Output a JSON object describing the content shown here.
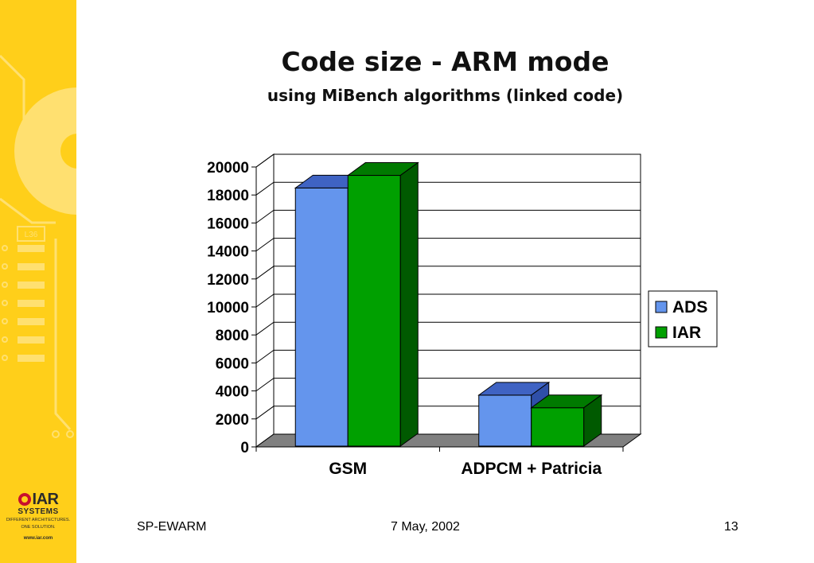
{
  "slide": {
    "title": "Code size - ARM mode",
    "subtitle": "using MiBench algorithms (linked code)"
  },
  "sidebar": {
    "board_label": "L36",
    "logo_word": "IAR",
    "logo_sub": "SYSTEMS",
    "logo_tag_line1": "DIFFERENT ARCHITECTURES.",
    "logo_tag_line2": "ONE SOLUTION.",
    "logo_url": "www.iar.com",
    "accent_color": "#ffcf1a",
    "art_color": "#ffe070"
  },
  "footer": {
    "left": "SP-EWARM",
    "center": "7 May, 2002",
    "right": "13"
  },
  "chart_data": {
    "type": "bar",
    "style": "3d-clustered",
    "title": "",
    "xlabel": "",
    "ylabel": "",
    "categories": [
      "GSM",
      "ADPCM + Patricia"
    ],
    "series": [
      {
        "name": "ADS",
        "values": [
          18500,
          3700
        ],
        "color": "#6495ed",
        "top_color": "#3f63c3",
        "side_color": "#2f4fa8"
      },
      {
        "name": "IAR",
        "values": [
          19400,
          2800
        ],
        "color": "#00a000",
        "top_color": "#007a00",
        "side_color": "#005a00"
      }
    ],
    "ylim": [
      0,
      20000
    ],
    "yticks": [
      "0",
      "2000",
      "4000",
      "6000",
      "8000",
      "10000",
      "12000",
      "14000",
      "16000",
      "18000",
      "20000"
    ],
    "grid": true,
    "legend_position": "right",
    "floor_color": "#808080"
  }
}
